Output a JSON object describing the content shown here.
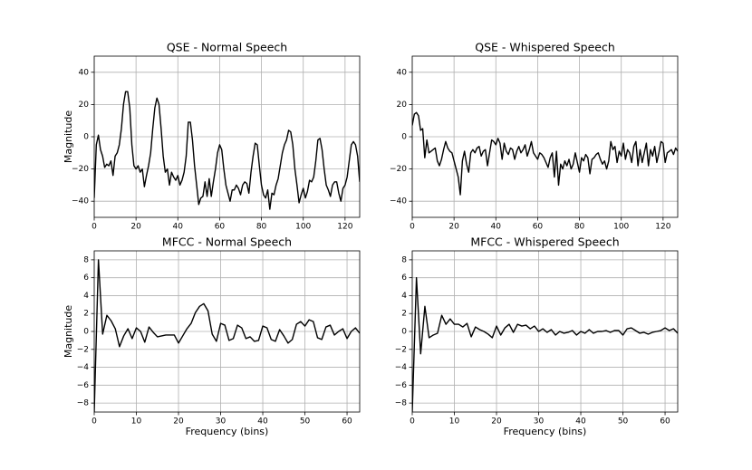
{
  "chart_data": [
    {
      "type": "line",
      "title": "QSE - Normal Speech",
      "ylabel": "Magnitude",
      "color": "#000000",
      "grid": true,
      "xlim": [
        0,
        127
      ],
      "ylim": [
        -50,
        50
      ],
      "xticks": [
        0,
        20,
        40,
        60,
        80,
        100,
        120
      ],
      "yticks": [
        {
          "value": -40,
          "label": "−40"
        },
        {
          "value": -20,
          "label": "−20"
        },
        0,
        20,
        40
      ],
      "x": [
        0,
        1,
        2,
        3,
        4,
        5,
        6,
        7,
        8,
        9,
        10,
        11,
        12,
        13,
        14,
        15,
        16,
        17,
        18,
        19,
        20,
        21,
        22,
        23,
        24,
        25,
        26,
        27,
        28,
        29,
        30,
        31,
        32,
        33,
        34,
        35,
        36,
        37,
        38,
        39,
        40,
        41,
        42,
        43,
        44,
        45,
        46,
        47,
        48,
        49,
        50,
        51,
        52,
        53,
        54,
        55,
        56,
        57,
        58,
        59,
        60,
        61,
        62,
        63,
        64,
        65,
        66,
        67,
        68,
        69,
        70,
        71,
        72,
        73,
        74,
        75,
        76,
        77,
        78,
        79,
        80,
        81,
        82,
        83,
        84,
        85,
        86,
        87,
        88,
        89,
        90,
        91,
        92,
        93,
        94,
        95,
        96,
        97,
        98,
        99,
        100,
        101,
        102,
        103,
        104,
        105,
        106,
        107,
        108,
        109,
        110,
        111,
        112,
        113,
        114,
        115,
        116,
        117,
        118,
        119,
        120,
        121,
        122,
        123,
        124,
        125,
        126,
        127
      ],
      "values": [
        -38,
        -5,
        1,
        -8,
        -12,
        -19,
        -17,
        -18,
        -15,
        -24,
        -12,
        -10,
        -5,
        5,
        20,
        28,
        28,
        18,
        -5,
        -18,
        -20,
        -18,
        -22,
        -20,
        -31,
        -24,
        -18,
        -10,
        5,
        18,
        24,
        20,
        5,
        -12,
        -22,
        -20,
        -30,
        -22,
        -25,
        -27,
        -24,
        -30,
        -27,
        -22,
        -12,
        9,
        9,
        -2,
        -18,
        -30,
        -42,
        -38,
        -37,
        -28,
        -37,
        -26,
        -37,
        -28,
        -20,
        -10,
        -5,
        -8,
        -20,
        -30,
        -35,
        -40,
        -33,
        -33,
        -30,
        -32,
        -36,
        -30,
        -28,
        -29,
        -35,
        -22,
        -12,
        -4,
        -5,
        -18,
        -30,
        -36,
        -38,
        -33,
        -45,
        -35,
        -36,
        -30,
        -26,
        -18,
        -10,
        -5,
        -2,
        4,
        3,
        -5,
        -20,
        -30,
        -41,
        -36,
        -32,
        -38,
        -34,
        -27,
        -28,
        -25,
        -15,
        -2,
        -1,
        -8,
        -20,
        -30,
        -33,
        -37,
        -30,
        -28,
        -28,
        -35,
        -40,
        -32,
        -30,
        -25,
        -15,
        -5,
        -3,
        -5,
        -12,
        -28
      ]
    },
    {
      "type": "line",
      "title": "QSE - Whispered Speech",
      "color": "#000000",
      "grid": true,
      "xlim": [
        0,
        127
      ],
      "ylim": [
        -50,
        50
      ],
      "xticks": [
        0,
        20,
        40,
        60,
        80,
        100,
        120
      ],
      "yticks": [
        {
          "value": -40,
          "label": "−40"
        },
        {
          "value": -20,
          "label": "−20"
        },
        0,
        20,
        40
      ],
      "x": [
        0,
        1,
        2,
        3,
        4,
        5,
        6,
        7,
        8,
        9,
        10,
        11,
        12,
        13,
        14,
        15,
        16,
        17,
        18,
        19,
        20,
        21,
        22,
        23,
        24,
        25,
        26,
        27,
        28,
        29,
        30,
        31,
        32,
        33,
        34,
        35,
        36,
        37,
        38,
        39,
        40,
        41,
        42,
        43,
        44,
        45,
        46,
        47,
        48,
        49,
        50,
        51,
        52,
        53,
        54,
        55,
        56,
        57,
        58,
        59,
        60,
        61,
        62,
        63,
        64,
        65,
        66,
        67,
        68,
        69,
        70,
        71,
        72,
        73,
        74,
        75,
        76,
        77,
        78,
        79,
        80,
        81,
        82,
        83,
        84,
        85,
        86,
        87,
        88,
        89,
        90,
        91,
        92,
        93,
        94,
        95,
        96,
        97,
        98,
        99,
        100,
        101,
        102,
        103,
        104,
        105,
        106,
        107,
        108,
        109,
        110,
        111,
        112,
        113,
        114,
        115,
        116,
        117,
        118,
        119,
        120,
        121,
        122,
        123,
        124,
        125,
        126,
        127
      ],
      "values": [
        7,
        14,
        15,
        13,
        4,
        5,
        -13,
        -2,
        -10,
        -9,
        -8,
        -7,
        -15,
        -18,
        -14,
        -8,
        -3,
        -7,
        -9,
        -10,
        -15,
        -20,
        -25,
        -36,
        -15,
        -9,
        -17,
        -22,
        -10,
        -8,
        -10,
        -7,
        -6,
        -12,
        -9,
        -8,
        -18,
        -10,
        -2,
        -3,
        -5,
        -1,
        -4,
        -14,
        -4,
        -9,
        -11,
        -7,
        -8,
        -14,
        -9,
        -6,
        -10,
        -8,
        -5,
        -12,
        -8,
        -3,
        -10,
        -12,
        -14,
        -10,
        -11,
        -13,
        -16,
        -19,
        -13,
        -10,
        -25,
        -9,
        -30,
        -17,
        -20,
        -15,
        -18,
        -14,
        -20,
        -17,
        -10,
        -16,
        -22,
        -13,
        -15,
        -11,
        -13,
        -23,
        -14,
        -13,
        -11,
        -10,
        -14,
        -17,
        -15,
        -20,
        -15,
        -3,
        -8,
        -6,
        -16,
        -9,
        -12,
        -4,
        -14,
        -8,
        -10,
        -16,
        -6,
        -3,
        -18,
        -8,
        -16,
        -10,
        -4,
        -18,
        -8,
        -12,
        -6,
        -16,
        -10,
        -3,
        -4,
        -16,
        -10,
        -9,
        -8,
        -11,
        -7,
        -9
      ]
    },
    {
      "type": "line",
      "title": "MFCC - Normal Speech",
      "ylabel": "Magnitude",
      "xlabel": "Frequency (bins)",
      "color": "#000000",
      "grid": true,
      "xlim": [
        0,
        63
      ],
      "ylim": [
        -9,
        9
      ],
      "xticks": [
        0,
        10,
        20,
        30,
        40,
        50,
        60
      ],
      "yticks": [
        {
          "value": -8,
          "label": "−8"
        },
        {
          "value": -6,
          "label": "−6"
        },
        {
          "value": -4,
          "label": "−4"
        },
        {
          "value": -2,
          "label": "−2"
        },
        0,
        2,
        4,
        6,
        8
      ],
      "x": [
        0,
        1,
        2,
        3,
        4,
        5,
        6,
        7,
        8,
        9,
        10,
        11,
        12,
        13,
        14,
        15,
        16,
        17,
        18,
        19,
        20,
        21,
        22,
        23,
        24,
        25,
        26,
        27,
        28,
        29,
        30,
        31,
        32,
        33,
        34,
        35,
        36,
        37,
        38,
        39,
        40,
        41,
        42,
        43,
        44,
        45,
        46,
        47,
        48,
        49,
        50,
        51,
        52,
        53,
        54,
        55,
        56,
        57,
        58,
        59,
        60,
        61,
        62,
        63
      ],
      "values": [
        -9,
        8,
        -0.3,
        1.8,
        1.2,
        0.3,
        -1.7,
        -0.5,
        0.3,
        -0.8,
        0.4,
        0,
        -1.2,
        0.5,
        -0.1,
        -0.6,
        -0.5,
        -0.4,
        -0.4,
        -0.4,
        -1.3,
        -0.5,
        0.3,
        0.9,
        2.1,
        2.8,
        3.1,
        2.3,
        -0.3,
        -1.1,
        0.9,
        0.7,
        -1,
        -0.8,
        0.7,
        0.4,
        -0.8,
        -0.6,
        -1.1,
        -1,
        0.6,
        0.4,
        -0.9,
        -1.1,
        0.2,
        -0.5,
        -1.3,
        -0.9,
        0.8,
        1.1,
        0.6,
        1.3,
        1.1,
        -0.7,
        -0.9,
        0.5,
        0.7,
        -0.4,
        0,
        0.3,
        -0.8,
        0,
        0.4,
        -0.2
      ]
    },
    {
      "type": "line",
      "title": "MFCC - Whispered Speech",
      "xlabel": "Frequency (bins)",
      "color": "#000000",
      "grid": true,
      "xlim": [
        0,
        63
      ],
      "ylim": [
        -9,
        9
      ],
      "xticks": [
        0,
        10,
        20,
        30,
        40,
        50,
        60
      ],
      "yticks": [
        {
          "value": -8,
          "label": "−8"
        },
        {
          "value": -6,
          "label": "−6"
        },
        {
          "value": -4,
          "label": "−4"
        },
        {
          "value": -2,
          "label": "−2"
        },
        0,
        2,
        4,
        6,
        8
      ],
      "x": [
        0,
        1,
        2,
        3,
        4,
        5,
        6,
        7,
        8,
        9,
        10,
        11,
        12,
        13,
        14,
        15,
        16,
        17,
        18,
        19,
        20,
        21,
        22,
        23,
        24,
        25,
        26,
        27,
        28,
        29,
        30,
        31,
        32,
        33,
        34,
        35,
        36,
        37,
        38,
        39,
        40,
        41,
        42,
        43,
        44,
        45,
        46,
        47,
        48,
        49,
        50,
        51,
        52,
        53,
        54,
        55,
        56,
        57,
        58,
        59,
        60,
        61,
        62,
        63
      ],
      "values": [
        -9,
        6,
        -2.5,
        2.8,
        -0.7,
        -0.4,
        -0.2,
        1.8,
        0.8,
        1.4,
        0.8,
        0.8,
        0.5,
        0.9,
        -0.6,
        0.5,
        0.2,
        0,
        -0.3,
        -0.7,
        0.6,
        -0.4,
        0.4,
        0.8,
        -0.1,
        0.8,
        0.6,
        0.7,
        0.3,
        0.6,
        0,
        0.3,
        -0.1,
        0.2,
        -0.4,
        0,
        -0.2,
        -0.1,
        0.1,
        -0.4,
        0,
        -0.2,
        0.2,
        -0.2,
        0,
        0,
        0.1,
        -0.1,
        0.1,
        0.1,
        -0.4,
        0.3,
        0.4,
        0.1,
        -0.2,
        -0.1,
        -0.3,
        -0.1,
        0,
        0.1,
        0.4,
        0.1,
        0.3,
        -0.2
      ]
    }
  ]
}
